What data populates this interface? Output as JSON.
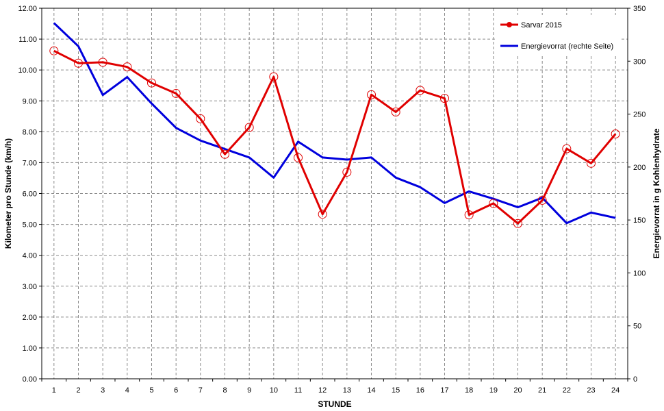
{
  "chart_data": {
    "type": "line",
    "categories": [
      "1",
      "2",
      "3",
      "4",
      "5",
      "6",
      "7",
      "8",
      "9",
      "10",
      "11",
      "12",
      "13",
      "14",
      "15",
      "16",
      "17",
      "18",
      "19",
      "20",
      "21",
      "22",
      "23",
      "24"
    ],
    "xlabel": "STUNDE",
    "ylabel_left": "Kilometer pro Stunde (km/h)",
    "ylabel_right": "Energievorrat in g Kohlenhydrate",
    "ylim_left": [
      0,
      12
    ],
    "ylim_right": [
      0,
      350
    ],
    "yticks_left": [
      "0.00",
      "1.00",
      "2.00",
      "3.00",
      "4.00",
      "5.00",
      "6.00",
      "7.00",
      "8.00",
      "9.00",
      "10.00",
      "11.00",
      "12.00"
    ],
    "yticks_right": [
      "0",
      "50",
      "100",
      "150",
      "200",
      "250",
      "300",
      "350"
    ],
    "grid": true,
    "legend_position": "top-right",
    "series": [
      {
        "name": "Sarvar 2015",
        "axis": "left",
        "color": "#e00000",
        "marker": "circle",
        "values": [
          10.62,
          10.22,
          10.25,
          10.1,
          9.58,
          9.24,
          8.42,
          7.27,
          8.14,
          9.78,
          7.16,
          5.33,
          6.69,
          9.2,
          8.64,
          9.34,
          9.08,
          5.31,
          5.68,
          5.03,
          5.78,
          7.45,
          6.98,
          7.93
        ]
      },
      {
        "name": "Energievorrat (rechte Seite)",
        "axis": "right",
        "color": "#0000dd",
        "marker": "none",
        "values": [
          336,
          314,
          268,
          285,
          260,
          237,
          225,
          217,
          209,
          190,
          224,
          209,
          207,
          209,
          190,
          181,
          166,
          177,
          170,
          162,
          171,
          147,
          157,
          152
        ]
      }
    ]
  }
}
